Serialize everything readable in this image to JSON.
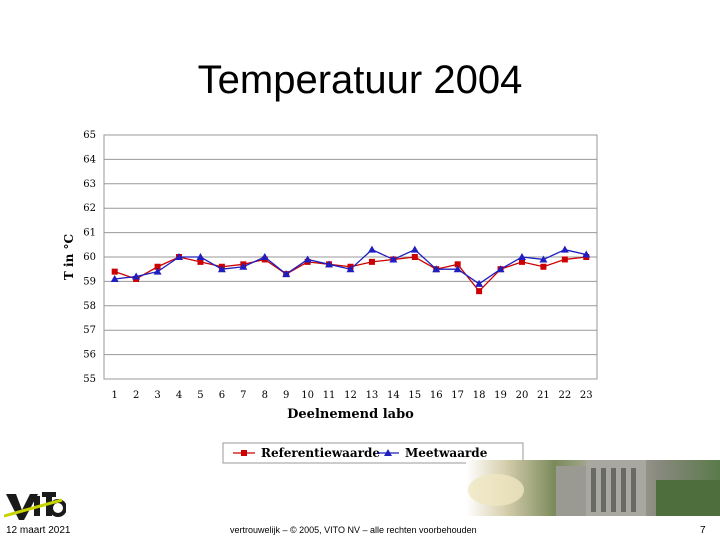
{
  "slide": {
    "title": "Temperatuur 2004",
    "date": "12 maart 2021",
    "confidential": "vertrouwelijk – © 2005, VITO NV – alle rechten voorbehouden",
    "page_number": "7"
  },
  "chart_data": {
    "type": "line",
    "title": "",
    "xlabel": "Deelnemend labo",
    "ylabel": "T in °C",
    "categories": [
      "1",
      "2",
      "3",
      "4",
      "5",
      "6",
      "7",
      "8",
      "9",
      "10",
      "11",
      "12",
      "13",
      "14",
      "15",
      "16",
      "17",
      "18",
      "19",
      "20",
      "21",
      "22",
      "23"
    ],
    "ylim": [
      55,
      65
    ],
    "yticks": [
      55,
      56,
      57,
      58,
      59,
      60,
      61,
      62,
      63,
      64,
      65
    ],
    "ytick_labels": [
      "55",
      "56",
      "57",
      "58",
      "59",
      "60",
      "61",
      "62",
      "63",
      "64",
      "65"
    ],
    "series": [
      {
        "name": "Referentiewaarde",
        "color": "#cc0000",
        "marker": "square",
        "values": [
          59.4,
          59.1,
          59.6,
          60.0,
          59.8,
          59.6,
          59.7,
          59.9,
          59.3,
          59.8,
          59.7,
          59.6,
          59.8,
          59.9,
          60.0,
          59.5,
          59.7,
          58.6,
          59.5,
          59.8,
          59.6,
          59.9,
          60.0
        ]
      },
      {
        "name": "Meetwaarde",
        "color": "#1f1fbf",
        "marker": "triangle",
        "values": [
          59.1,
          59.2,
          59.4,
          60.0,
          60.0,
          59.5,
          59.6,
          60.0,
          59.3,
          59.9,
          59.7,
          59.5,
          60.3,
          59.9,
          60.3,
          59.5,
          59.5,
          58.9,
          59.5,
          60.0,
          59.9,
          60.3,
          60.1
        ]
      }
    ],
    "grid": true,
    "legend": "bottom"
  }
}
